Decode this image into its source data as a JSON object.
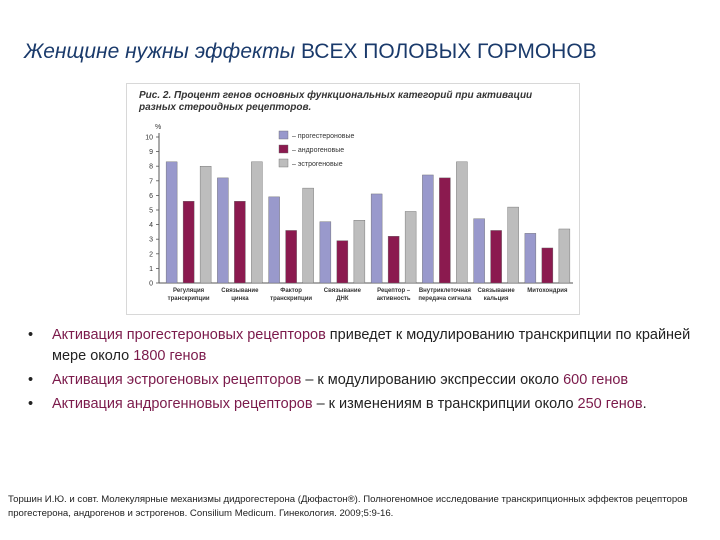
{
  "slide": {
    "title_part1": "Женщине нужны эффекты ",
    "title_part2": "ВСЕХ ПОЛОВЫХ ГОРМОНОВ"
  },
  "figure": {
    "caption": "Рис. 2. Процент генов основных функциональных категорий при активации разных стероидных рецепторов."
  },
  "chart_data": {
    "type": "bar",
    "title": "Рис. 2. Процент генов основных функциональных категорий при активации разных стероидных рецепторов.",
    "ylabel": "%",
    "ylim": [
      0,
      10
    ],
    "yticks": [
      0,
      1,
      2,
      3,
      4,
      5,
      6,
      7,
      8,
      9,
      10
    ],
    "grid": false,
    "legend_position": "top-right",
    "categories": [
      [
        "Регуляция",
        "транскрипции"
      ],
      [
        "Связывание",
        "цинка"
      ],
      [
        "Фактор",
        "транскрипции"
      ],
      [
        "Связывание",
        "ДНК"
      ],
      [
        "Рецептор –",
        "активность"
      ],
      [
        "Внутриклеточная",
        "передача сигнала"
      ],
      [
        "Связывание",
        "кальция"
      ],
      [
        "Митохондрия",
        ""
      ]
    ],
    "series": [
      {
        "name": "– прогестероновые",
        "color": "#9999cc",
        "values": [
          8.3,
          7.2,
          5.9,
          4.2,
          6.1,
          7.4,
          4.4,
          3.4
        ]
      },
      {
        "name": "– андрогеновые",
        "color": "#8b1a4f",
        "values": [
          5.6,
          5.6,
          3.6,
          2.9,
          3.2,
          7.2,
          3.6,
          2.4
        ]
      },
      {
        "name": "– эстрогеновые",
        "color": "#bdbdbd",
        "values": [
          8.0,
          8.3,
          6.5,
          4.3,
          4.9,
          8.3,
          5.2,
          3.7
        ]
      }
    ]
  },
  "bullets": [
    {
      "highlight": "Активация прогестероновых рецепторов",
      "rest_a": " приведет к модулированию транскрипции по крайней мере около ",
      "number": "1800 генов",
      "rest_b": ""
    },
    {
      "highlight": "Активация эстрогеновых рецепторов",
      "rest_a": " – к  модулированию экспрессии около ",
      "number": "600 генов",
      "rest_b": ""
    },
    {
      "highlight": "Активация андрогенновых рецепторов",
      "rest_a": " – к изменениям в транскрипции около ",
      "number": "250 генов",
      "rest_b": "."
    }
  ],
  "bullet_glyph": "•",
  "reference": "Торшин И.Ю. и совт. Молекулярные механизмы дидрогестерона (Дюфастон®). Полногеномное исследование транскрипционных эффектов рецепторов прогестерона, андрогенов и эстрогенов. Consilium Medicum. Гинекология. 2009;5:9-16."
}
